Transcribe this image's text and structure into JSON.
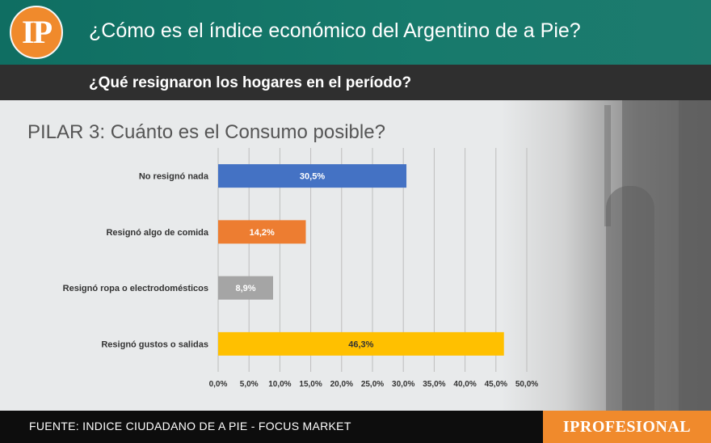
{
  "header": {
    "logo_text": "IP",
    "title": "¿Cómo es el índice económico del Argentino de a Pie?",
    "subtitle": "¿Qué resignaron los hogares en el período?"
  },
  "chart_data": {
    "type": "bar",
    "orientation": "horizontal",
    "title": "PILAR 3: Cuánto es el Consumo posible?",
    "categories": [
      "No resignó nada",
      "Resignó algo de comida",
      "Resignó ropa o electrodomésticos",
      "Resignó gustos o salidas"
    ],
    "values": [
      30.5,
      14.2,
      8.9,
      46.3
    ],
    "value_labels": [
      "30,5%",
      "14,2%",
      "8,9%",
      "46,3%"
    ],
    "colors": [
      "#4472c4",
      "#ed7d31",
      "#a5a5a5",
      "#ffc000"
    ],
    "label_colors": [
      "#ffffff",
      "#ffffff",
      "#ffffff",
      "#333333"
    ],
    "xlim": [
      0,
      50
    ],
    "xticks": [
      0,
      5,
      10,
      15,
      20,
      25,
      30,
      35,
      40,
      45,
      50
    ],
    "xtick_labels": [
      "0,0%",
      "5,0%",
      "10,0%",
      "15,0%",
      "20,0%",
      "25,0%",
      "30,0%",
      "35,0%",
      "40,0%",
      "45,0%",
      "50,0%"
    ],
    "grid": true
  },
  "footer": {
    "source": "FUENTE: INDICE CIUDADANO DE A PIE - FOCUS MARKET",
    "brand": "IPROFESIONAL"
  }
}
